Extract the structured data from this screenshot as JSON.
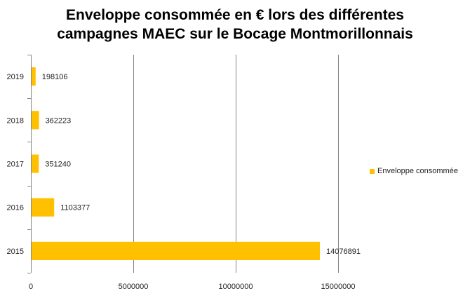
{
  "chart_data": {
    "type": "bar",
    "orientation": "horizontal",
    "title_lines": [
      "Enveloppe consommée en € lors des différentes",
      "campagnes MAEC sur le Bocage Montmorillonnais"
    ],
    "categories": [
      "2015",
      "2016",
      "2017",
      "2018",
      "2019"
    ],
    "series": [
      {
        "name": "Enveloppe consommée",
        "values": [
          14076891,
          1103377,
          351240,
          362223,
          198106
        ],
        "color": "#ffc000"
      }
    ],
    "xlim": [
      0,
      15000000
    ],
    "x_ticks": [
      0,
      5000000,
      10000000,
      15000000
    ],
    "x_tick_labels": [
      "0",
      "5000000",
      "10000000",
      "15000000"
    ],
    "data_labels": [
      "14076891",
      "1103377",
      "351240",
      "362223",
      "198106"
    ],
    "grid": "vertical",
    "legend_position": "right",
    "xlabel": "",
    "ylabel": ""
  }
}
